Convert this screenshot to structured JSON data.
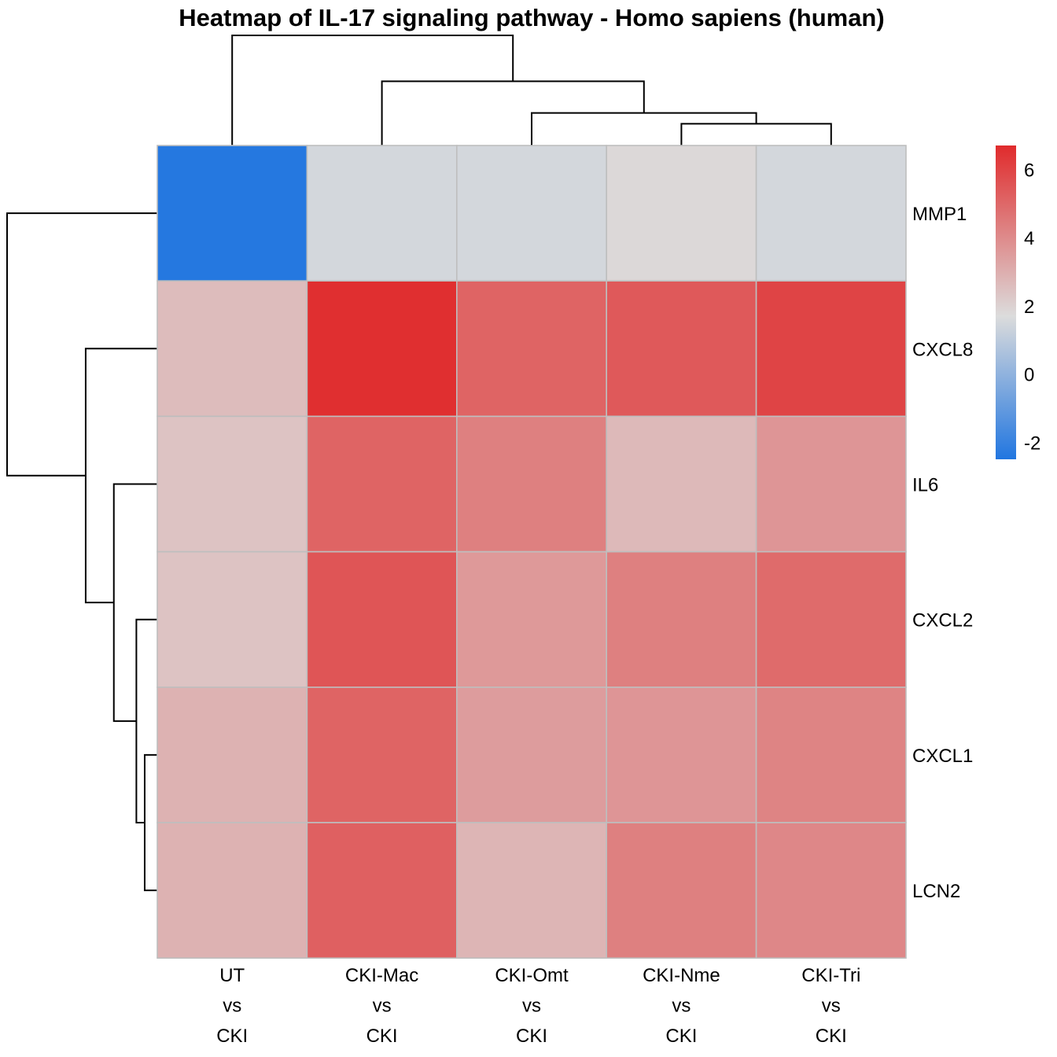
{
  "chart_data": {
    "type": "heatmap",
    "title": "Heatmap of IL-17 signaling pathway - Homo sapiens (human)",
    "rows": [
      "MMP1",
      "CXCL8",
      "IL6",
      "CXCL2",
      "CXCL1",
      "LCN2"
    ],
    "columns": [
      [
        "UT",
        "vs",
        "CKI"
      ],
      [
        "CKI-Mac",
        "vs",
        "CKI"
      ],
      [
        "CKI-Omt",
        "vs",
        "CKI"
      ],
      [
        "CKI-Nme",
        "vs",
        "CKI"
      ],
      [
        "CKI-Tri",
        "vs",
        "CKI"
      ]
    ],
    "values": [
      [
        -2.4,
        1.5,
        1.5,
        1.8,
        1.5
      ],
      [
        2.6,
        6.6,
        5.1,
        5.4,
        6.0
      ],
      [
        2.4,
        5.1,
        4.3,
        2.7,
        3.7
      ],
      [
        2.4,
        5.5,
        3.6,
        4.3,
        4.9
      ],
      [
        2.9,
        5.1,
        3.5,
        3.7,
        4.2
      ],
      [
        2.9,
        5.2,
        2.8,
        4.3,
        4.1
      ]
    ],
    "color_scale": {
      "min": -2.5,
      "mid": 1.7,
      "max": 6.7,
      "low_color": "#2176e0",
      "mid_color": "#dcdcdc",
      "high_color": "#e02b2c",
      "ticks": [
        6,
        4,
        2,
        0,
        -2
      ]
    },
    "legend_position": "right",
    "column_dendrogram": {
      "merges": [
        [
          3,
          4
        ],
        [
          2,
          "a"
        ],
        [
          1,
          "b"
        ],
        [
          0,
          "c"
        ]
      ],
      "heights": [
        0.52,
        0.78,
        1.54,
        2.64
      ]
    },
    "row_dendrogram": {
      "merges": [
        [
          4,
          5
        ],
        [
          3,
          "a"
        ],
        [
          2,
          "b"
        ],
        [
          1,
          "c"
        ],
        [
          0,
          "d"
        ]
      ],
      "heights": [
        0.47,
        0.78,
        1.62,
        2.67,
        5.6
      ]
    }
  }
}
